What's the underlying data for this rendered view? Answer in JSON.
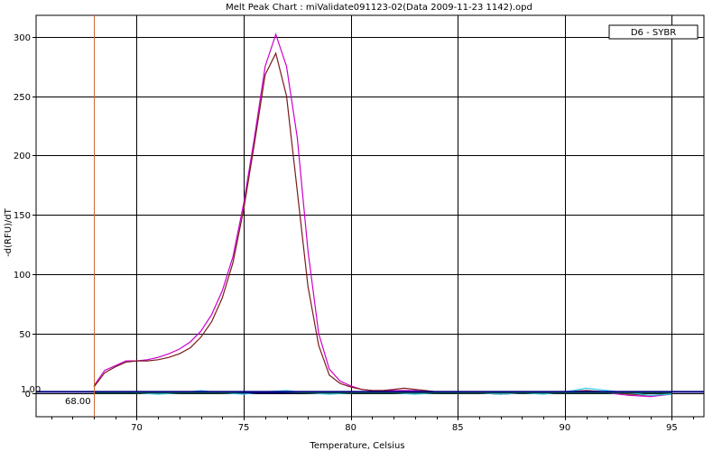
{
  "chart_data": {
    "type": "line",
    "title": "Melt Peak Chart : miValidate091123-02(Data 2009-11-23 1142).opd",
    "xlabel": "Temperature, Celsius",
    "ylabel": "-d(RFU)/dT",
    "xlim": [
      65.3,
      96.5
    ],
    "ylim": [
      -20,
      318
    ],
    "xticks": [
      70,
      75,
      80,
      85,
      90,
      95
    ],
    "yticks": [
      0,
      50,
      100,
      150,
      200,
      250,
      300
    ],
    "grid": true,
    "legend": {
      "position": "top-right",
      "entries": [
        "D6 - SYBR"
      ]
    },
    "annotations": {
      "threshold_value": "1.00",
      "cursor_temperature": "68.00",
      "cursor_x": 68.0,
      "threshold_y": 1.0
    },
    "colors": {
      "magenta": "#cc00cc",
      "dark_red": "#7a1a1a",
      "cyan": "#33ccee",
      "navy": "#000080",
      "green": "#228833",
      "cursor": "#cc6633",
      "threshold": "#000080"
    },
    "series": [
      {
        "color": "magenta",
        "x": [
          68.0,
          68.5,
          69.0,
          69.5,
          70.0,
          70.5,
          71.0,
          71.5,
          72.0,
          72.5,
          73.0,
          73.5,
          74.0,
          74.5,
          75.0,
          75.5,
          76.0,
          76.5,
          77.0,
          77.5,
          78.0,
          78.5,
          79.0,
          79.5,
          80.0,
          80.5,
          81.0,
          81.5,
          82.0,
          82.5,
          83.0,
          83.5,
          84.0,
          85.0,
          86.0,
          87.0,
          88.0,
          89.0,
          90.0,
          91.0,
          92.0,
          93.0,
          94.0,
          95.0
        ],
        "y": [
          6,
          19,
          23,
          27,
          27,
          28,
          30,
          33,
          37,
          43,
          52,
          66,
          86,
          115,
          160,
          215,
          275,
          302,
          275,
          215,
          120,
          50,
          20,
          10,
          6,
          3,
          2,
          2,
          2,
          2,
          2,
          1,
          1,
          0,
          0,
          -1,
          0,
          1,
          1,
          2,
          0,
          -2,
          -3,
          -1
        ]
      },
      {
        "color": "dark_red",
        "x": [
          68.0,
          68.5,
          69.0,
          69.5,
          70.0,
          70.5,
          71.0,
          71.5,
          72.0,
          72.5,
          73.0,
          73.5,
          74.0,
          74.5,
          75.0,
          75.5,
          76.0,
          76.5,
          77.0,
          77.5,
          78.0,
          78.5,
          79.0,
          79.5,
          80.0,
          80.5,
          81.0,
          81.5,
          82.0,
          82.5,
          83.0,
          83.5,
          84.0,
          85.0,
          86.0,
          87.0,
          88.0,
          89.0,
          90.0,
          91.0,
          92.0,
          93.0,
          94.0,
          95.0
        ],
        "y": [
          5,
          17,
          22,
          26,
          27,
          27,
          28,
          30,
          33,
          38,
          47,
          60,
          80,
          110,
          155,
          210,
          268,
          286,
          250,
          170,
          90,
          40,
          15,
          8,
          5,
          3,
          2,
          2,
          3,
          4,
          3,
          2,
          1,
          0,
          0,
          -1,
          0,
          0,
          1,
          2,
          1,
          -1,
          -2,
          -1
        ]
      },
      {
        "color": "cyan",
        "x": [
          68.0,
          69.0,
          70.0,
          71.0,
          72.0,
          73.0,
          74.0,
          75.0,
          76.0,
          77.0,
          78.0,
          79.0,
          80.0,
          81.0,
          82.0,
          83.0,
          84.0,
          85.0,
          86.0,
          87.0,
          88.0,
          89.0,
          90.0,
          91.0,
          92.0,
          93.0,
          94.0,
          95.0
        ],
        "y": [
          0,
          1,
          0,
          -1,
          0,
          2,
          0,
          -1,
          1,
          2,
          0,
          -1,
          0,
          1,
          0,
          -1,
          0,
          1,
          0,
          -1,
          0,
          -1,
          1,
          4,
          2,
          0,
          -2,
          -1
        ]
      },
      {
        "color": "navy",
        "x": [
          68.0,
          70.0,
          72.0,
          74.0,
          76.0,
          78.0,
          80.0,
          82.0,
          84.0,
          86.0,
          88.0,
          90.0,
          92.0,
          94.0,
          95.0
        ],
        "y": [
          0,
          0,
          0,
          0,
          0,
          0,
          0,
          0,
          0,
          0,
          0,
          0,
          0,
          0,
          0
        ]
      },
      {
        "color": "green",
        "x": [
          68.0,
          70.0,
          72.0,
          74.0,
          76.0,
          78.0,
          80.0,
          82.0,
          84.0,
          86.0,
          88.0,
          90.0,
          92.0,
          94.0,
          95.0
        ],
        "y": [
          0,
          0,
          0,
          0,
          1,
          0,
          0,
          0,
          0,
          0,
          0,
          0,
          0,
          0,
          0
        ]
      }
    ]
  }
}
